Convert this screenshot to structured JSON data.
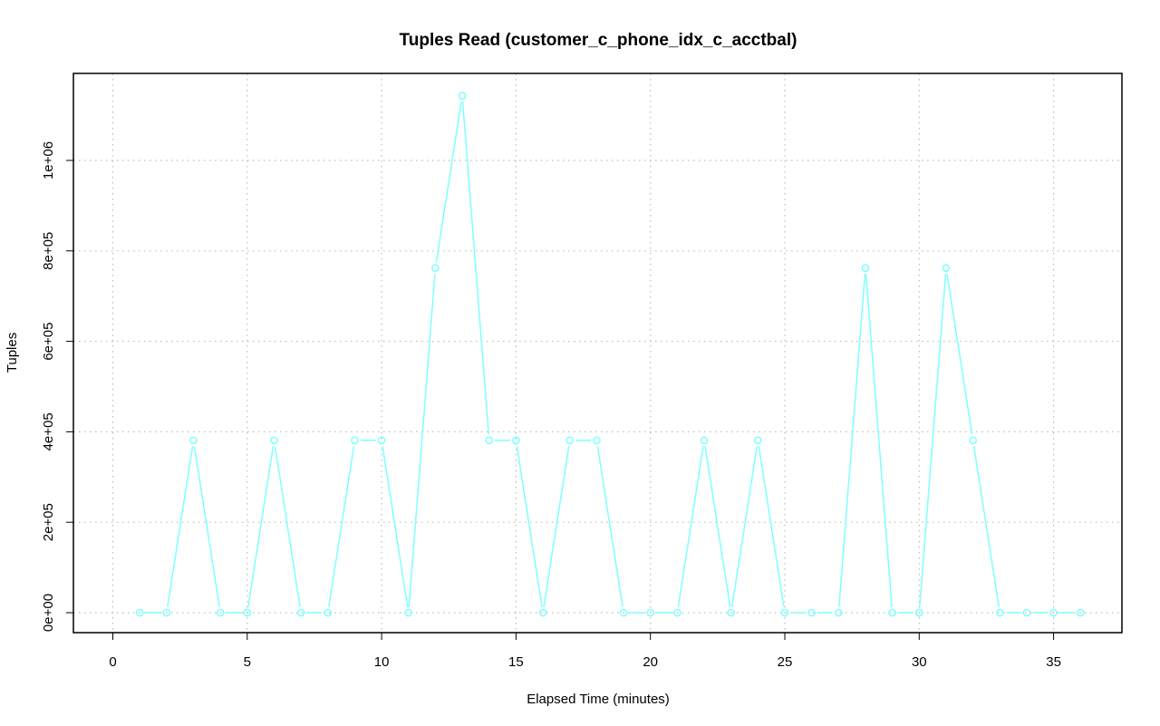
{
  "chart_data": {
    "type": "line",
    "title": "Tuples Read (customer_c_phone_idx_c_acctbal)",
    "xlabel": "Elapsed Time (minutes)",
    "ylabel": "Tuples",
    "xlim": [
      0,
      36
    ],
    "ylim": [
      0,
      1140000
    ],
    "x_ticks": [
      0,
      5,
      10,
      15,
      20,
      25,
      30,
      35
    ],
    "x_tick_labels": [
      "0",
      "5",
      "10",
      "15",
      "20",
      "25",
      "30",
      "35"
    ],
    "y_ticks": [
      0,
      200000,
      400000,
      600000,
      800000,
      1000000
    ],
    "y_tick_labels": [
      "0e+00",
      "2e+05",
      "4e+05",
      "6e+05",
      "8e+05",
      "1e+06"
    ],
    "grid": true,
    "series": [
      {
        "color": "#7fffff",
        "marker": "circle",
        "x": [
          1,
          2,
          3,
          4,
          5,
          6,
          7,
          8,
          9,
          10,
          11,
          12,
          13,
          14,
          15,
          16,
          17,
          18,
          19,
          20,
          21,
          22,
          23,
          24,
          25,
          26,
          27,
          28,
          29,
          30,
          31,
          32,
          33,
          34,
          35,
          36
        ],
        "y": [
          0,
          0,
          381000,
          0,
          0,
          381000,
          0,
          0,
          381000,
          381000,
          0,
          762000,
          1143000,
          381000,
          381000,
          0,
          381000,
          381000,
          0,
          0,
          0,
          381000,
          0,
          381000,
          0,
          0,
          0,
          762000,
          0,
          0,
          762000,
          381000,
          0,
          0,
          0,
          0
        ]
      }
    ]
  }
}
